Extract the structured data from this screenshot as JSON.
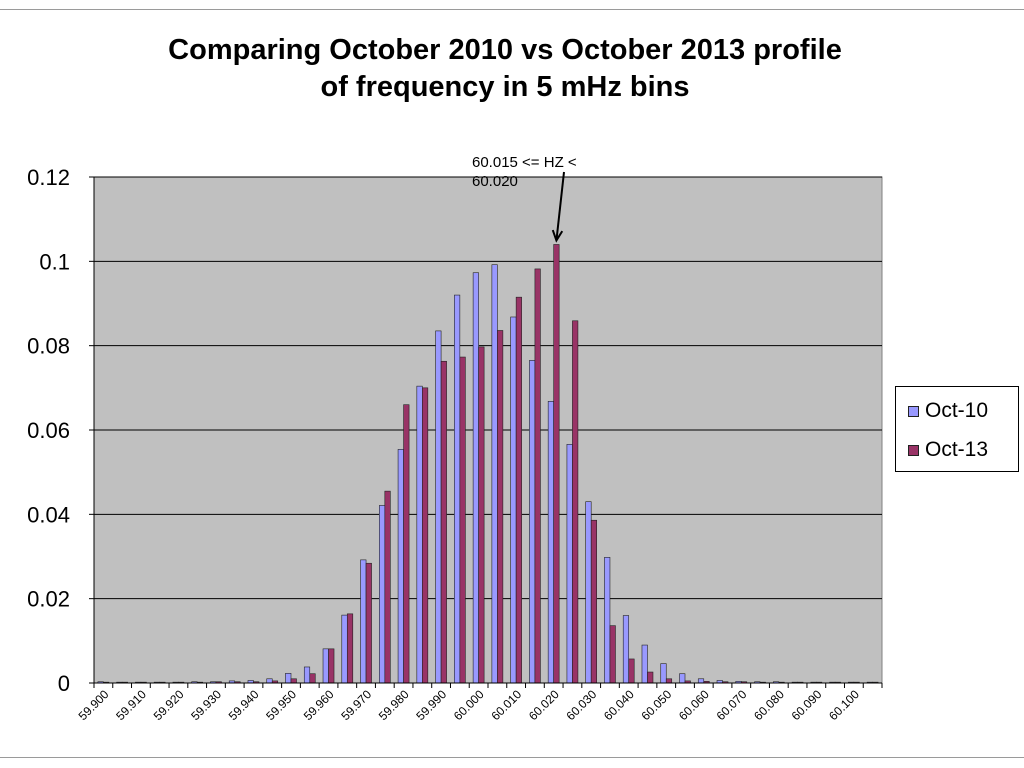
{
  "chart_data": {
    "type": "bar",
    "title_lines": [
      "Comparing October 2010 vs October 2013 profile",
      "of frequency in 5 mHz bins"
    ],
    "xlabel": "",
    "ylabel": "",
    "ylim": [
      0,
      0.12
    ],
    "yticks": [
      "0",
      "0.02",
      "0.04",
      "0.06",
      "0.08",
      "0.1",
      "0.12"
    ],
    "ytick_values": [
      0,
      0.02,
      0.04,
      0.06,
      0.08,
      0.1,
      0.12
    ],
    "categories": [
      "59.900",
      "59.905",
      "59.910",
      "59.915",
      "59.920",
      "59.925",
      "59.930",
      "59.935",
      "59.940",
      "59.945",
      "59.950",
      "59.955",
      "59.960",
      "59.965",
      "59.970",
      "59.975",
      "59.980",
      "59.985",
      "59.990",
      "59.995",
      "60.000",
      "60.005",
      "60.010",
      "60.015",
      "60.020",
      "60.025",
      "60.030",
      "60.035",
      "60.040",
      "60.045",
      "60.050",
      "60.055",
      "60.060",
      "60.065",
      "60.070",
      "60.075",
      "60.080",
      "60.085",
      "60.090",
      "60.095",
      "60.100",
      "60.105"
    ],
    "xtick_labels": [
      "59.900",
      "59.910",
      "59.920",
      "59.930",
      "59.940",
      "59.950",
      "59.960",
      "59.970",
      "59.980",
      "59.990",
      "60.000",
      "60.010",
      "60.020",
      "60.030",
      "60.040",
      "60.050",
      "60.060",
      "60.070",
      "60.080",
      "60.090",
      "60.100"
    ],
    "series": [
      {
        "name": "Oct-10",
        "color": "#9999ff",
        "values": [
          0.0003,
          0.0002,
          0.0002,
          0.0002,
          0.0002,
          0.0003,
          0.0003,
          0.0005,
          0.0006,
          0.001,
          0.0023,
          0.0038,
          0.0081,
          0.0161,
          0.0292,
          0.0421,
          0.0554,
          0.0704,
          0.0835,
          0.092,
          0.0973,
          0.0992,
          0.0868,
          0.0765,
          0.0668,
          0.0566,
          0.043,
          0.0298,
          0.016,
          0.009,
          0.0046,
          0.0022,
          0.001,
          0.0006,
          0.0004,
          0.0003,
          0.0003,
          0.0002,
          0.0002,
          0.0002,
          0.0002,
          0.0002
        ]
      },
      {
        "name": "Oct-13",
        "color": "#993366",
        "values": [
          0.0002,
          0.0002,
          0.0002,
          0.0002,
          0.0002,
          0.0002,
          0.0003,
          0.0003,
          0.0003,
          0.0005,
          0.001,
          0.0022,
          0.0081,
          0.0164,
          0.0284,
          0.0455,
          0.066,
          0.07,
          0.0763,
          0.0773,
          0.0797,
          0.0836,
          0.0915,
          0.0982,
          0.104,
          0.0859,
          0.0386,
          0.0136,
          0.0057,
          0.0026,
          0.001,
          0.0005,
          0.0004,
          0.0003,
          0.0003,
          0.0002,
          0.0002,
          0.0002,
          0.0002,
          0.0002,
          0.0002,
          0.0002
        ]
      }
    ],
    "grid": true,
    "legend_position": "right",
    "annotation": {
      "lines": [
        "60.015 <= HZ <",
        "60.020"
      ],
      "target_category": "60.020",
      "target_series": "Oct-13"
    }
  }
}
